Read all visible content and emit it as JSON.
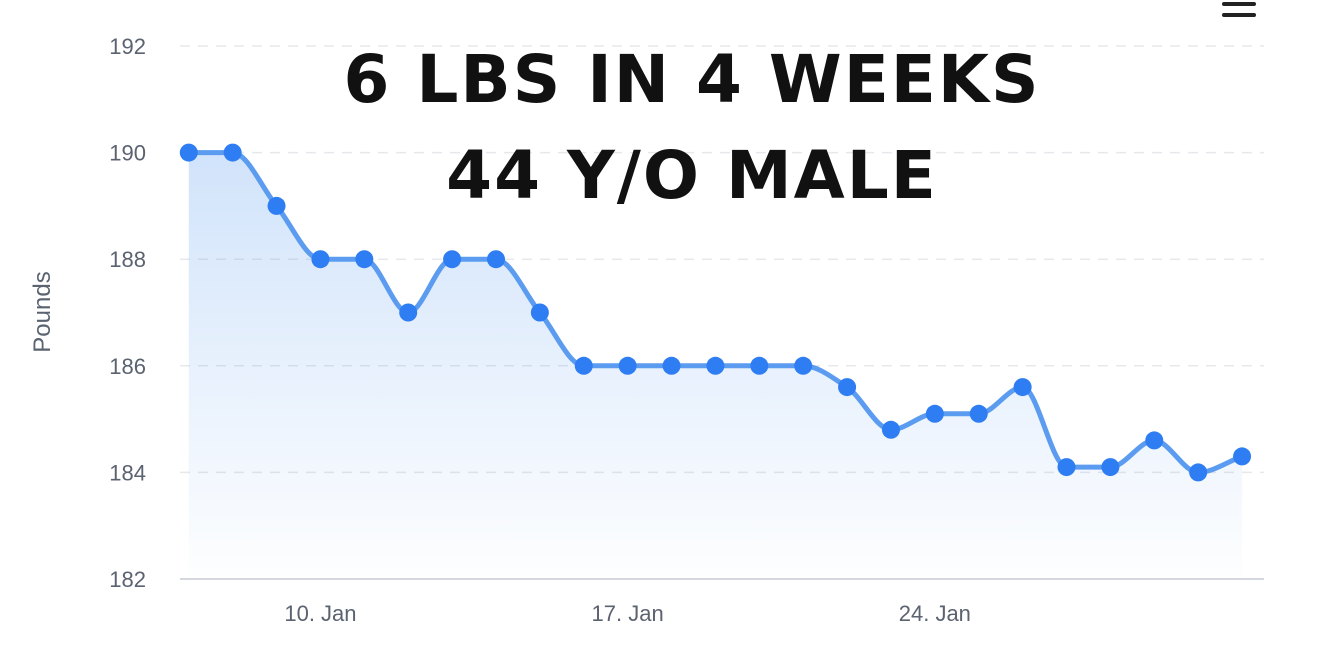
{
  "menu": {
    "icon": "hamburger-menu-icon"
  },
  "chart_data": {
    "type": "line",
    "title": [
      "6 LBS IN 4 WEEKS",
      "44 Y/O MALE"
    ],
    "xlabel": "",
    "ylabel": "Pounds",
    "ylim": [
      182,
      192
    ],
    "yticks": [
      182,
      184,
      186,
      188,
      190,
      192
    ],
    "xticks": [
      {
        "label": "10. Jan",
        "day": 10
      },
      {
        "label": "17. Jan",
        "day": 17
      },
      {
        "label": "24. Jan",
        "day": 24
      }
    ],
    "x_range_days": [
      6.8,
      31.5
    ],
    "grid": true,
    "legend": "none",
    "fill": "gradient",
    "line_color": "#5b9cf0",
    "point_color": "#2f7df2",
    "series": [
      {
        "days": [
          7,
          8,
          9,
          10,
          11,
          12,
          13,
          14,
          15,
          16,
          17,
          18,
          19,
          20,
          21,
          22,
          23,
          24,
          25,
          26,
          27,
          28,
          29,
          30,
          31
        ],
        "values": [
          190,
          190,
          189,
          188,
          188,
          187,
          188,
          188,
          187,
          186,
          186,
          186,
          186,
          186,
          186,
          185.6,
          184.8,
          185.1,
          185.1,
          185.6,
          184.1,
          184.1,
          184.6,
          184,
          184.3
        ]
      }
    ]
  }
}
